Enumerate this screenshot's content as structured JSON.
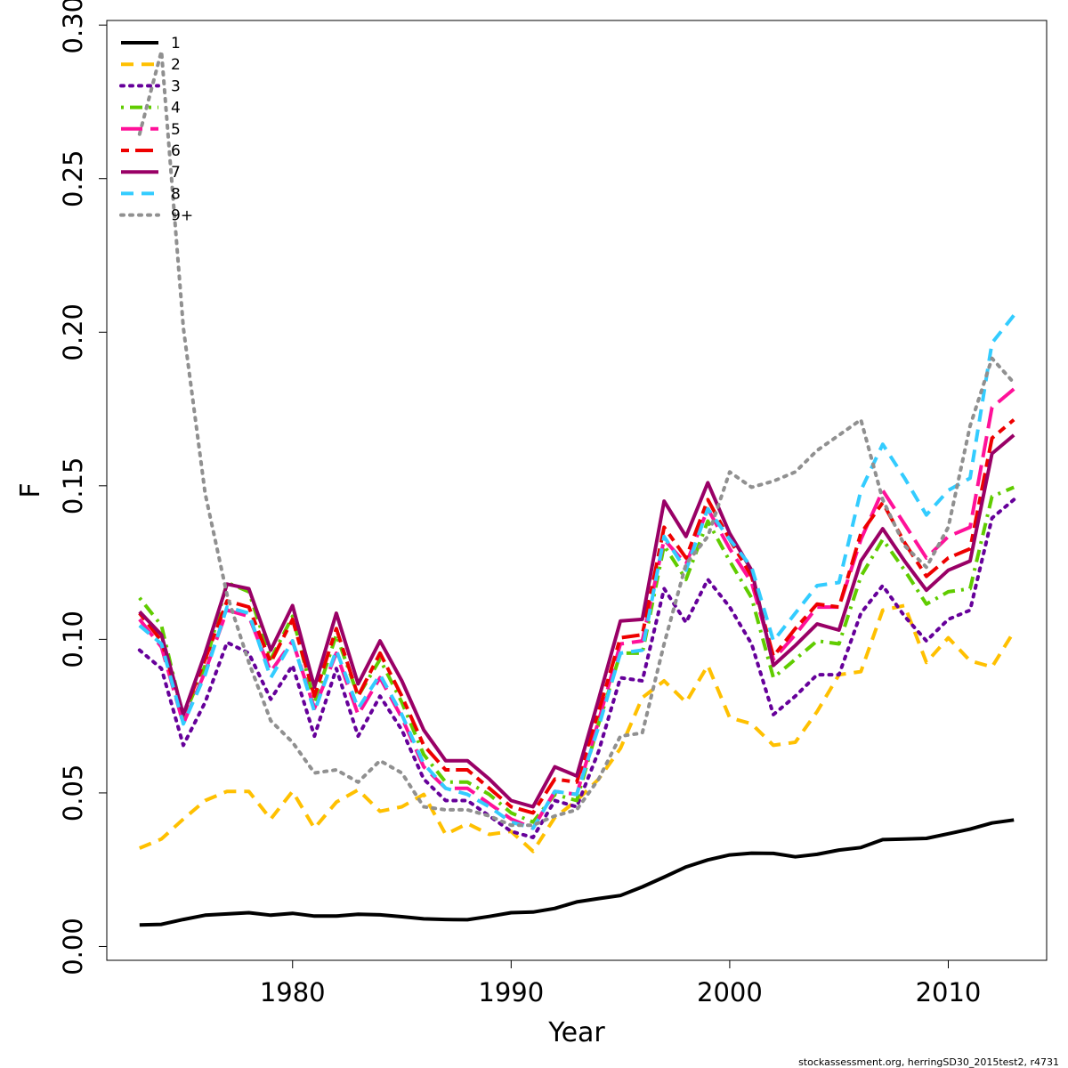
{
  "chart_data": {
    "type": "line",
    "xlabel": "Year",
    "ylabel": "F",
    "xlim": [
      1971.5,
      2014.5
    ],
    "ylim": [
      -0.0045,
      0.3015
    ],
    "xticks": [
      1980,
      1990,
      2000,
      2010
    ],
    "xtick_labels": [
      "1980",
      "1990",
      "2000",
      "2010"
    ],
    "yticks": [
      0,
      0.05,
      0.1,
      0.15,
      0.2,
      0.25,
      0.3
    ],
    "ytick_labels": [
      "0.00",
      "0.05",
      "0.10",
      "0.15",
      "0.20",
      "0.25",
      "0.30"
    ],
    "grid": false,
    "legend_position": "top-left",
    "x": [
      1973,
      1974,
      1975,
      1976,
      1977,
      1978,
      1979,
      1980,
      1981,
      1982,
      1983,
      1984,
      1985,
      1986,
      1987,
      1988,
      1989,
      1990,
      1991,
      1992,
      1993,
      1994,
      1995,
      1996,
      1997,
      1998,
      1999,
      2000,
      2001,
      2002,
      2003,
      2004,
      2005,
      2006,
      2007,
      2008,
      2009,
      2010,
      2011,
      2012,
      2013
    ],
    "series": [
      {
        "name": "1",
        "color": "#000000",
        "dash": "solid",
        "values": [
          0.007,
          0.0072,
          0.0088,
          0.0102,
          0.0106,
          0.011,
          0.0102,
          0.0108,
          0.0099,
          0.0099,
          0.0105,
          0.0103,
          0.0097,
          0.009,
          0.0088,
          0.0087,
          0.0098,
          0.011,
          0.0112,
          0.0124,
          0.0145,
          0.0156,
          0.0166,
          0.0194,
          0.0226,
          0.0259,
          0.0282,
          0.0298,
          0.0304,
          0.0303,
          0.0292,
          0.03,
          0.0314,
          0.0322,
          0.0348,
          0.035,
          0.0352,
          0.0367,
          0.0382,
          0.0402,
          0.0412
        ]
      },
      {
        "name": "2",
        "color": "#FFC000",
        "dash": "dashed",
        "values": [
          0.032,
          0.035,
          0.0415,
          0.0475,
          0.0505,
          0.0505,
          0.0415,
          0.0505,
          0.0385,
          0.047,
          0.051,
          0.044,
          0.0455,
          0.0495,
          0.0365,
          0.04,
          0.0365,
          0.0375,
          0.031,
          0.042,
          0.0475,
          0.0545,
          0.0645,
          0.081,
          0.0865,
          0.0795,
          0.0915,
          0.0745,
          0.0725,
          0.0655,
          0.0665,
          0.0765,
          0.0885,
          0.0895,
          0.1095,
          0.111,
          0.0925,
          0.1005,
          0.093,
          0.091,
          0.1025
        ]
      },
      {
        "name": "3",
        "color": "#66009A",
        "dash": "dotted",
        "values": [
          0.0965,
          0.0905,
          0.0655,
          0.0795,
          0.099,
          0.0955,
          0.0805,
          0.0915,
          0.0685,
          0.0905,
          0.0685,
          0.0815,
          0.0705,
          0.0545,
          0.0475,
          0.0475,
          0.0425,
          0.0375,
          0.0355,
          0.0475,
          0.0455,
          0.0635,
          0.0875,
          0.0865,
          0.1165,
          0.1055,
          0.1195,
          0.1105,
          0.0985,
          0.0755,
          0.0815,
          0.0885,
          0.0885,
          0.1085,
          0.1175,
          0.1075,
          0.0995,
          0.1065,
          0.1095,
          0.1395,
          0.1455
        ]
      },
      {
        "name": "4",
        "color": "#60CC00",
        "dash": "dashdot",
        "values": [
          0.1135,
          0.1045,
          0.0745,
          0.0915,
          0.1185,
          0.1155,
          0.0935,
          0.1075,
          0.0795,
          0.1015,
          0.0815,
          0.0935,
          0.0795,
          0.0625,
          0.0535,
          0.0535,
          0.0495,
          0.0435,
          0.0405,
          0.0495,
          0.0475,
          0.0725,
          0.0955,
          0.0955,
          0.1305,
          0.1195,
          0.1385,
          0.1255,
          0.1135,
          0.0875,
          0.0935,
          0.0995,
          0.0985,
          0.1205,
          0.1325,
          0.1225,
          0.1115,
          0.1155,
          0.1165,
          0.1465,
          0.1495
        ]
      },
      {
        "name": "5",
        "color": "#FF1199",
        "dash": "longdash",
        "values": [
          0.1065,
          0.0975,
          0.0725,
          0.0895,
          0.1095,
          0.1075,
          0.0895,
          0.0995,
          0.0775,
          0.0955,
          0.0755,
          0.0875,
          0.0745,
          0.0585,
          0.0515,
          0.0515,
          0.0465,
          0.0415,
          0.0385,
          0.0505,
          0.0495,
          0.0735,
          0.0985,
          0.0995,
          0.1325,
          0.1245,
          0.1425,
          0.1295,
          0.1185,
          0.0935,
          0.1015,
          0.1105,
          0.1105,
          0.1325,
          0.1485,
          0.1375,
          0.1265,
          0.1335,
          0.1365,
          0.1755,
          0.1815
        ]
      },
      {
        "name": "6",
        "color": "#EE0000",
        "dash": "twodash",
        "values": [
          0.1085,
          0.0995,
          0.0755,
          0.0935,
          0.1125,
          0.1105,
          0.0925,
          0.1065,
          0.0815,
          0.1035,
          0.0815,
          0.0955,
          0.0815,
          0.0655,
          0.0575,
          0.0575,
          0.0515,
          0.0455,
          0.0435,
          0.0545,
          0.0535,
          0.0765,
          0.1005,
          0.1015,
          0.1365,
          0.1265,
          0.1455,
          0.1325,
          0.1205,
          0.0945,
          0.1035,
          0.1115,
          0.1105,
          0.1345,
          0.1445,
          0.1315,
          0.1205,
          0.1265,
          0.1295,
          0.1655,
          0.1715
        ]
      },
      {
        "name": "7",
        "color": "#990066",
        "dash": "solid",
        "values": [
          0.109,
          0.1015,
          0.0755,
          0.0955,
          0.118,
          0.1165,
          0.0965,
          0.111,
          0.0845,
          0.1085,
          0.0855,
          0.0995,
          0.0865,
          0.0705,
          0.0605,
          0.0605,
          0.0545,
          0.0475,
          0.0455,
          0.0585,
          0.0555,
          0.0805,
          0.106,
          0.1065,
          0.145,
          0.1335,
          0.151,
          0.1345,
          0.1225,
          0.0915,
          0.098,
          0.105,
          0.103,
          0.1255,
          0.136,
          0.1255,
          0.116,
          0.1225,
          0.1255,
          0.1605,
          0.1665
        ]
      },
      {
        "name": "8",
        "color": "#33CCFF",
        "dash": "dashed",
        "values": [
          0.1045,
          0.0985,
          0.0725,
          0.0885,
          0.1105,
          0.1085,
          0.0875,
          0.0995,
          0.0765,
          0.0965,
          0.0775,
          0.0885,
          0.0755,
          0.0595,
          0.0515,
          0.0495,
          0.0455,
          0.0405,
          0.0385,
          0.0505,
          0.0495,
          0.0715,
          0.0955,
          0.0965,
          0.1335,
          0.1225,
          0.1425,
          0.1325,
          0.1235,
          0.0995,
          0.1085,
          0.1175,
          0.1185,
          0.1485,
          0.1635,
          0.1525,
          0.1405,
          0.1485,
          0.1525,
          0.1965,
          0.2055
        ]
      },
      {
        "name": "9+",
        "color": "#909090",
        "dash": "dotted",
        "values": [
          0.2645,
          0.2915,
          0.2015,
          0.1475,
          0.1145,
          0.0925,
          0.0735,
          0.0665,
          0.0565,
          0.0575,
          0.0535,
          0.0605,
          0.0565,
          0.0455,
          0.0445,
          0.0445,
          0.0425,
          0.0395,
          0.0395,
          0.0425,
          0.0445,
          0.0545,
          0.0685,
          0.0695,
          0.0985,
          0.1245,
          0.1335,
          0.1545,
          0.1495,
          0.1515,
          0.1545,
          0.1615,
          0.1665,
          0.1715,
          0.1455,
          0.1305,
          0.1235,
          0.1365,
          0.1695,
          0.1915,
          0.1835
        ]
      }
    ]
  },
  "footer": {
    "note": "stockassessment.org, herringSD30_2015test2, r4731"
  }
}
